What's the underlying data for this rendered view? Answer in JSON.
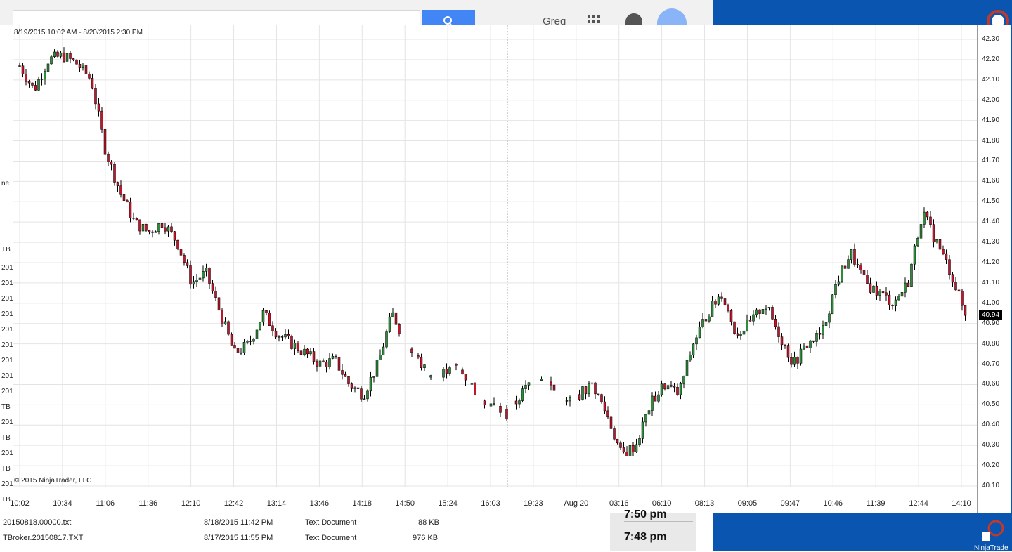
{
  "browser": {
    "user_name": "Greg",
    "accent": "#4285f4"
  },
  "chart": {
    "date_range": "8/19/2015 10:02 AM - 8/20/2015 2:30 PM",
    "copyright": "© 2015 NinjaTrader, LLC",
    "current_price_label": "40.94"
  },
  "left_strip_labels": [
    "ne",
    "TB",
    "201",
    "201",
    "201",
    "201",
    "201",
    "201",
    "201",
    "201",
    "201",
    "TB",
    "201",
    "TB",
    "201",
    "TB",
    "201",
    "TB"
  ],
  "files": [
    {
      "name": "20150818.00000.txt",
      "date": "8/18/2015 11:42 PM",
      "type": "Text Document",
      "size": "88 KB"
    },
    {
      "name": "TBroker.20150817.TXT",
      "date": "8/17/2015 11:55 PM",
      "type": "Text Document",
      "size": "976 KB"
    }
  ],
  "clock": {
    "time1": "7:50 pm",
    "time2": "7:48 pm"
  },
  "taskbar": {
    "ninja_label": "NinjaTrade"
  },
  "chart_data": {
    "type": "candlestick",
    "title": "",
    "ylim": [
      40.1,
      42.3
    ],
    "y_ticks": [
      "42.30",
      "42.20",
      "42.10",
      "42.00",
      "41.90",
      "41.80",
      "41.70",
      "41.60",
      "41.50",
      "41.40",
      "41.30",
      "41.20",
      "41.10",
      "41.00",
      "40.90",
      "40.80",
      "40.70",
      "40.60",
      "40.50",
      "40.40",
      "40.30",
      "40.20",
      "40.10"
    ],
    "x_ticks": [
      "10:02",
      "10:34",
      "11:06",
      "11:36",
      "12:10",
      "12:42",
      "13:14",
      "13:46",
      "14:18",
      "14:50",
      "15:24",
      "16:03",
      "19:23",
      "Aug 20",
      "03:16",
      "06:10",
      "08:13",
      "09:05",
      "09:47",
      "10:46",
      "11:39",
      "12:44",
      "14:10"
    ],
    "close_path": [
      42.17,
      42.05,
      42.2,
      42.22,
      42.18,
      42.1,
      41.75,
      41.55,
      41.4,
      41.35,
      41.4,
      41.3,
      41.1,
      41.15,
      40.95,
      40.75,
      40.8,
      40.95,
      40.85,
      40.8,
      40.75,
      40.7,
      40.72,
      40.6,
      40.55,
      40.7,
      40.95,
      40.8,
      40.7,
      40.6,
      40.7,
      40.65,
      40.55,
      40.5,
      40.45,
      40.55,
      40.65,
      40.6,
      40.5,
      40.55,
      40.6,
      40.45,
      40.25,
      40.3,
      40.5,
      40.6,
      40.55,
      40.8,
      40.95,
      41.05,
      40.85,
      40.9,
      41.0,
      40.85,
      40.7,
      40.8,
      40.85,
      41.1,
      41.25,
      41.1,
      41.05,
      41.0,
      41.1,
      41.45,
      41.3,
      41.15,
      40.94
    ]
  }
}
